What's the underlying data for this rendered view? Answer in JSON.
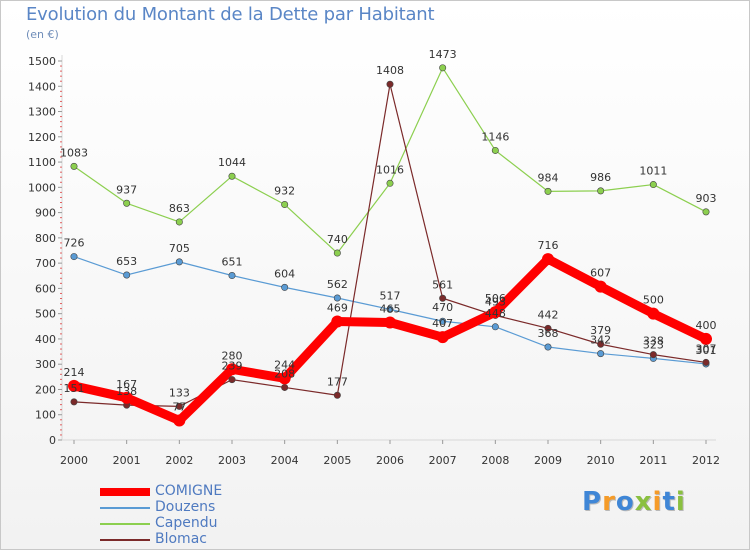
{
  "chart_data": {
    "type": "line",
    "title": "Evolution du Montant de la Dette par Habitant",
    "subtitle": "(en €)",
    "x": [
      "2000",
      "2001",
      "2002",
      "2003",
      "2004",
      "2005",
      "2006",
      "2007",
      "2008",
      "2009",
      "2010",
      "2011",
      "2012"
    ],
    "y_ticks": [
      "0",
      "100",
      "200",
      "300",
      "400",
      "500",
      "600",
      "700",
      "800",
      "900",
      "1000",
      "1100",
      "1200",
      "1300",
      "1400",
      "1500"
    ],
    "ylim": [
      0,
      1500
    ],
    "grid": false,
    "legend_position": "bottom-left",
    "series": [
      {
        "name": "COMIGNE",
        "color": "#ff0000",
        "values": [
          214,
          167,
          77,
          280,
          244,
          469,
          465,
          407,
          506,
          716,
          607,
          500,
          400
        ],
        "labels": [
          "214",
          "167",
          "77",
          "280",
          "244",
          "469",
          "465",
          "407",
          "506",
          "716",
          "607",
          "500",
          "400"
        ]
      },
      {
        "name": "Douzens",
        "color": "#5a9bd4",
        "values": [
          726,
          653,
          705,
          651,
          604,
          562,
          517,
          470,
          448,
          368,
          342,
          323,
          301
        ],
        "labels": [
          "726",
          "653",
          "705",
          "651",
          "604",
          "562",
          "517",
          "470",
          "448",
          "368",
          "342",
          "323",
          "301"
        ]
      },
      {
        "name": "Capendu",
        "color": "#8ccf4f",
        "values": [
          1083,
          937,
          863,
          1044,
          932,
          740,
          1016,
          1473,
          1146,
          984,
          986,
          1011,
          903
        ],
        "labels": [
          "1083",
          "937",
          "863",
          "1044",
          "932",
          "740",
          "1016",
          "1473",
          "1146",
          "984",
          "986",
          "1011",
          "903"
        ]
      },
      {
        "name": "Blomac",
        "color": "#7b2a2a",
        "values": [
          151,
          138,
          133,
          239,
          208,
          177,
          1408,
          561,
          493,
          442,
          379,
          338,
          307
        ],
        "labels": [
          "151",
          "138",
          "133",
          "239",
          "208",
          "177",
          "1408",
          "561",
          "493",
          "442",
          "379",
          "338",
          "307"
        ]
      }
    ]
  },
  "logo": {
    "letters": [
      {
        "ch": "P",
        "color": "#3f86d6"
      },
      {
        "ch": "r",
        "color": "#f59b28"
      },
      {
        "ch": "o",
        "color": "#3f86d6"
      },
      {
        "ch": "x",
        "color": "#8ac040"
      },
      {
        "ch": "i",
        "color": "#f59b28"
      },
      {
        "ch": "t",
        "color": "#3f86d6"
      },
      {
        "ch": "i",
        "color": "#8ac040"
      }
    ]
  }
}
